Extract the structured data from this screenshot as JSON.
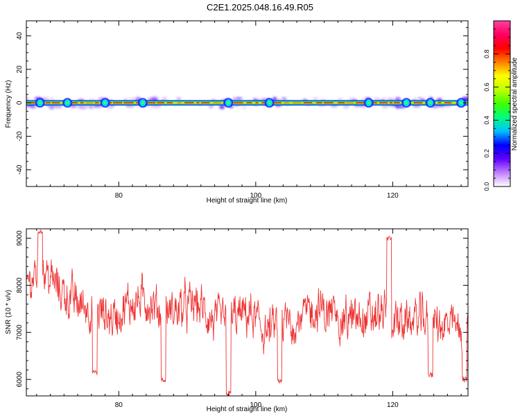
{
  "title": "C2E1.2025.048.16.49.R05",
  "chart_data": [
    {
      "type": "heatmap",
      "xlabel": "Height of straight line (km)",
      "ylabel": "Frequency (Hz)",
      "xlim": [
        66.5,
        131
      ],
      "ylim": [
        -50,
        49
      ],
      "x_ticks": [
        80,
        100,
        120
      ],
      "x_tick_labels": [
        "80",
        "100",
        "120"
      ],
      "y_ticks": [
        40,
        20,
        0,
        -20,
        -40
      ],
      "y_tick_labels": [
        "40",
        "20",
        "0",
        "-20",
        "-40"
      ],
      "band_center_hz": 0,
      "band_halfwidth_hz": 1,
      "hot_spots_km": [
        68.5,
        72.5,
        78,
        83.5,
        96,
        102,
        116.5,
        122,
        125.5,
        130
      ],
      "colorbar": {
        "label": "Normalized spectral amplitude",
        "range": [
          0,
          1
        ],
        "ticks": [
          0.0,
          0.2,
          0.4,
          0.6,
          0.8
        ],
        "tick_labels": [
          "0.0",
          "0.2",
          "0.4",
          "0.6",
          "0.8"
        ],
        "colors": [
          "#ffffff",
          "#c080ff",
          "#6000ff",
          "#0000ff",
          "#00c0ff",
          "#00ff80",
          "#40ff00",
          "#c0ff00",
          "#ffff00",
          "#ff8000",
          "#ff0000",
          "#ff0060",
          "#ff40a0"
        ]
      }
    },
    {
      "type": "line",
      "xlabel": "Height of straight line (km)",
      "ylabel": "SNR (10 * v/v)",
      "xlim": [
        66.5,
        131
      ],
      "ylim": [
        5650,
        9200
      ],
      "x_ticks": [
        80,
        100,
        120
      ],
      "x_tick_labels": [
        "80",
        "100",
        "120"
      ],
      "y_ticks": [
        6000,
        7000,
        8000,
        9000
      ],
      "y_tick_labels": [
        "6000",
        "7000",
        "8000",
        "9000"
      ],
      "color": "#ee3333",
      "series": [
        {
          "x_start": 66.5,
          "x_step": 2.5,
          "values": [
            8050,
            8300,
            7900,
            7600,
            7500,
            7300,
            7600,
            7700,
            7400,
            7500,
            7600,
            7200,
            7300,
            7400,
            7000,
            7200,
            7300,
            7500,
            7350,
            7250,
            7300,
            7400,
            7200,
            7300,
            7200,
            7100,
            7000
          ]
        }
      ],
      "notable_points": [
        {
          "x": 68.5,
          "y": 9150
        },
        {
          "x": 76.5,
          "y": 6150
        },
        {
          "x": 86.5,
          "y": 6000
        },
        {
          "x": 96,
          "y": 5700
        },
        {
          "x": 103.5,
          "y": 5950
        },
        {
          "x": 119.5,
          "y": 9000
        },
        {
          "x": 125.5,
          "y": 6100
        },
        {
          "x": 130.5,
          "y": 6000
        }
      ]
    }
  ]
}
